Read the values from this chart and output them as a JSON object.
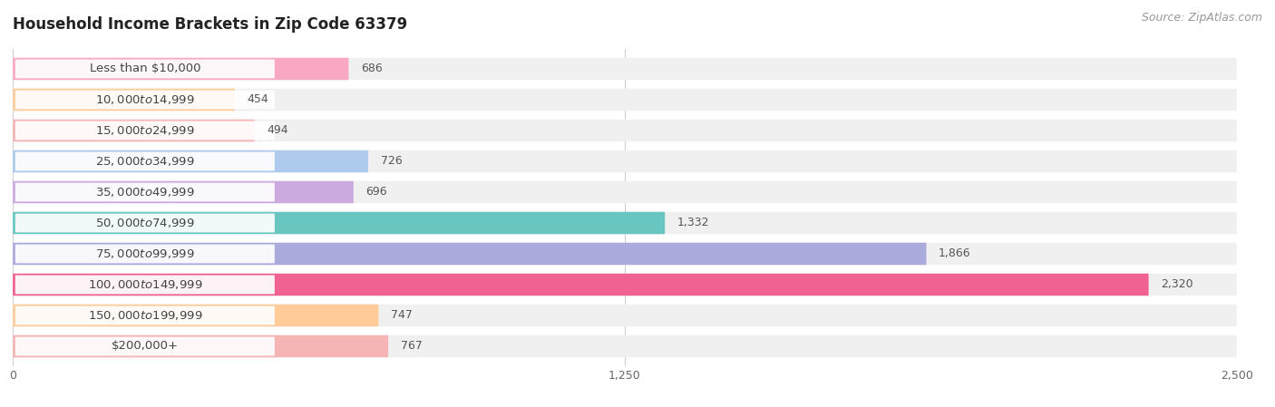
{
  "title": "Household Income Brackets in Zip Code 63379",
  "source": "Source: ZipAtlas.com",
  "categories": [
    "Less than $10,000",
    "$10,000 to $14,999",
    "$15,000 to $24,999",
    "$25,000 to $34,999",
    "$35,000 to $49,999",
    "$50,000 to $74,999",
    "$75,000 to $99,999",
    "$100,000 to $149,999",
    "$150,000 to $199,999",
    "$200,000+"
  ],
  "values": [
    686,
    454,
    494,
    726,
    696,
    1332,
    1866,
    2320,
    747,
    767
  ],
  "bar_colors": [
    "#F9A8C4",
    "#FFCB99",
    "#F5B5B5",
    "#AECBEE",
    "#CCAAE0",
    "#68C5C0",
    "#AAAADD",
    "#F06292",
    "#FFCB99",
    "#F5B5B5"
  ],
  "background_color": "#ffffff",
  "bar_row_bg": "#f0f0f0",
  "xlim": [
    0,
    2500
  ],
  "xticks": [
    0,
    1250,
    2500
  ],
  "title_fontsize": 12,
  "label_fontsize": 9.5,
  "value_fontsize": 9,
  "source_fontsize": 9
}
